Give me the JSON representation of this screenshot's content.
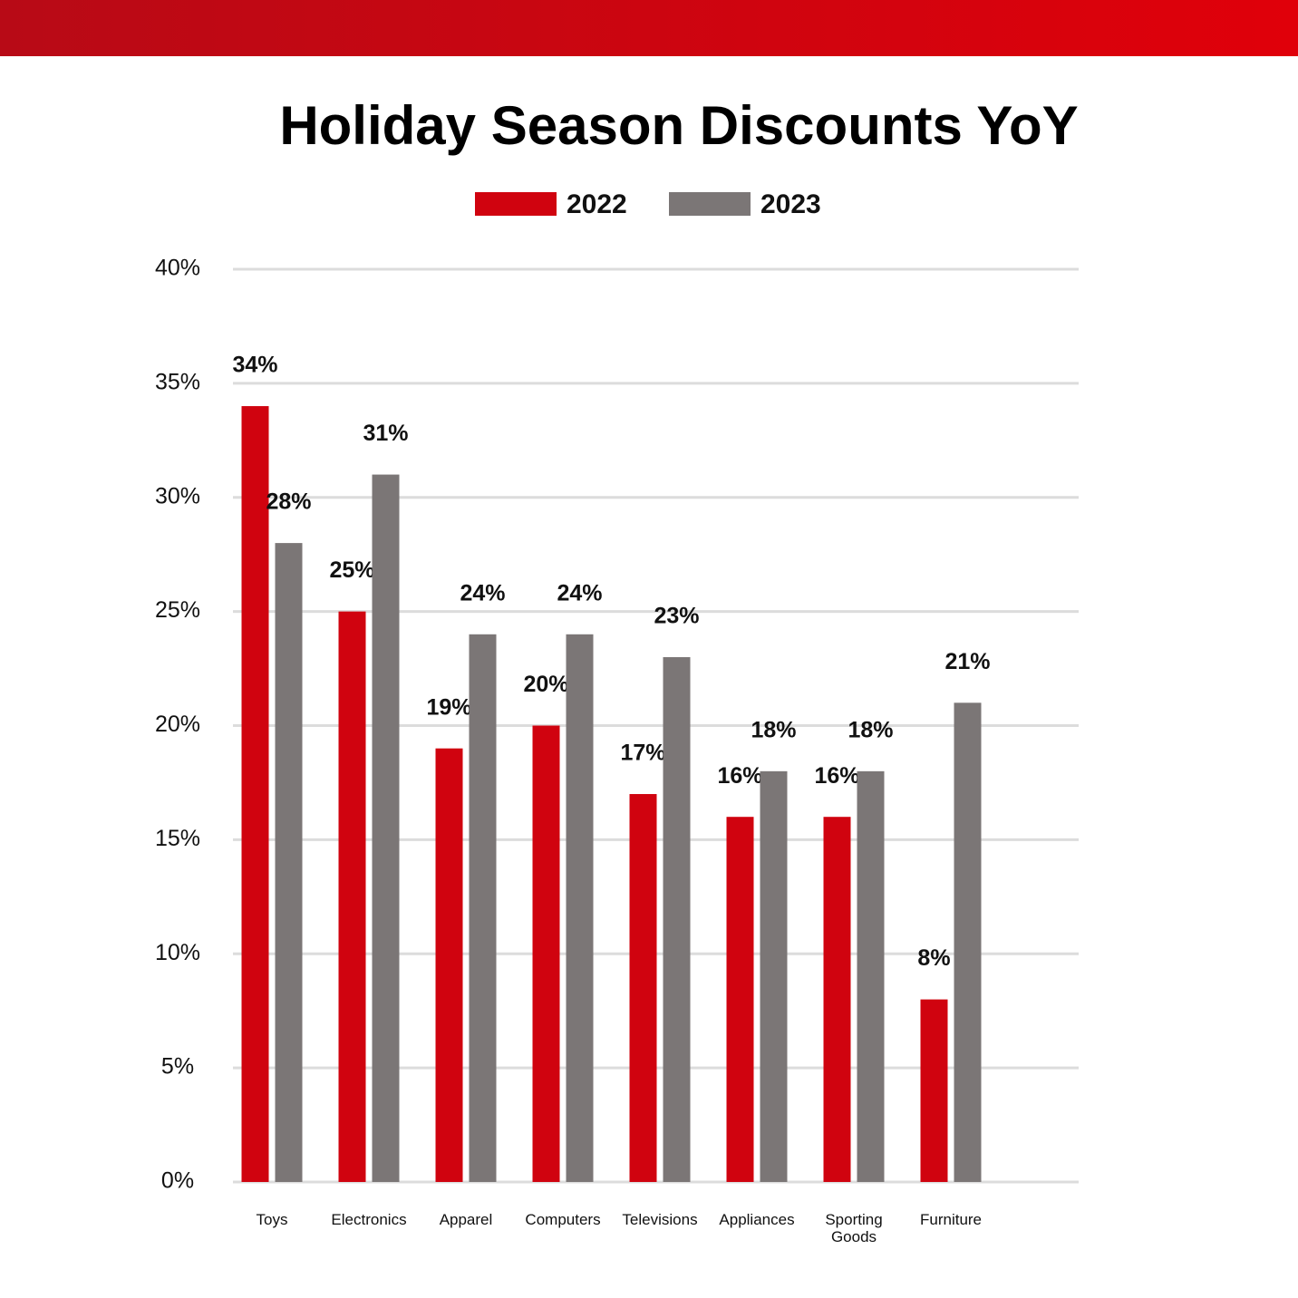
{
  "chart_data": {
    "type": "bar",
    "title": "Holiday Season Discounts YoY",
    "categories": [
      "Toys",
      "Electronics",
      "Apparel",
      "Computers",
      "Televisions",
      "Appliances",
      "Sporting Goods",
      "Furniture"
    ],
    "series": [
      {
        "name": "2022",
        "color": "#d0030f",
        "values": [
          34,
          25,
          19,
          20,
          17,
          16,
          16,
          8
        ],
        "value_labels": [
          "34%",
          "25%",
          "19%",
          "20%",
          "17%",
          "16%",
          "16%",
          "8%"
        ]
      },
      {
        "name": "2023",
        "color": "#7b7676",
        "values": [
          28,
          31,
          24,
          24,
          23,
          18,
          18,
          21
        ],
        "value_labels": [
          "28%",
          "31%",
          "24%",
          "24%",
          "23%",
          "18%",
          "18%",
          "21%"
        ]
      }
    ],
    "ylim": [
      0,
      40
    ],
    "yticks": [
      {
        "value": 0,
        "label": "0%"
      },
      {
        "value": 5,
        "label": "5%"
      },
      {
        "value": 10,
        "label": "10%"
      },
      {
        "value": 15,
        "label": "15%"
      },
      {
        "value": 20,
        "label": "20%"
      },
      {
        "value": 25,
        "label": "25%"
      },
      {
        "value": 30,
        "label": "30%"
      },
      {
        "value": 35,
        "label": "35%"
      },
      {
        "value": 40,
        "label": "40%"
      }
    ],
    "grid": true
  }
}
